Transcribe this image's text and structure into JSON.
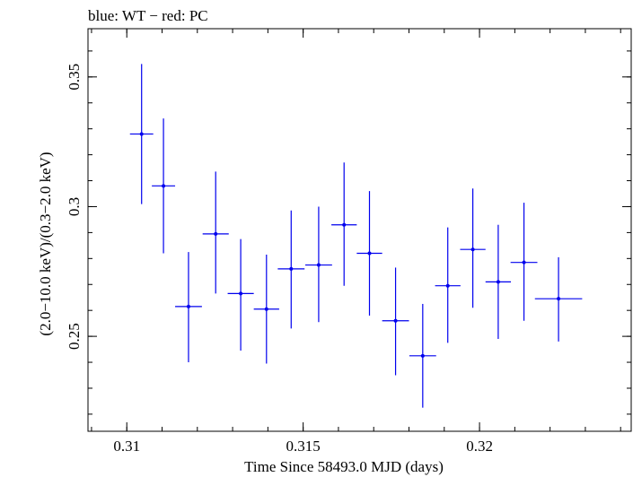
{
  "chart_data": {
    "type": "scatter",
    "title": "blue: WT − red: PC",
    "xlabel": "Time Since 58493.0 MJD (days)",
    "ylabel": "(2.0−10.0 keV)/(0.3−2.0 keV)",
    "xlim": [
      0.3089,
      0.3243
    ],
    "ylim": [
      0.2134,
      0.3686
    ],
    "xticks": [
      0.31,
      0.315,
      0.32
    ],
    "xtick_labels": [
      "0.31",
      "0.315",
      "0.32"
    ],
    "yticks": [
      0.25,
      0.3,
      0.35
    ],
    "ytick_labels": [
      "0.25",
      "0.3",
      "0.35"
    ],
    "x_minor_step": 0.001,
    "y_minor_step": 0.01,
    "grid": false,
    "color": "#0000ee",
    "series": [
      {
        "points": [
          {
            "x": 0.31042,
            "xerr": 0.00033,
            "y": 0.328,
            "ylo": 0.301,
            "yhi": 0.355
          },
          {
            "x": 0.31104,
            "xerr": 0.00033,
            "y": 0.308,
            "ylo": 0.282,
            "yhi": 0.334
          },
          {
            "x": 0.31175,
            "xerr": 0.00038,
            "y": 0.2615,
            "ylo": 0.24,
            "yhi": 0.2825
          },
          {
            "x": 0.31252,
            "xerr": 0.00037,
            "y": 0.2895,
            "ylo": 0.2665,
            "yhi": 0.3135
          },
          {
            "x": 0.31323,
            "xerr": 0.00037,
            "y": 0.2665,
            "ylo": 0.2445,
            "yhi": 0.2875
          },
          {
            "x": 0.31396,
            "xerr": 0.00036,
            "y": 0.2605,
            "ylo": 0.2395,
            "yhi": 0.2815
          },
          {
            "x": 0.31466,
            "xerr": 0.00038,
            "y": 0.276,
            "ylo": 0.253,
            "yhi": 0.2985
          },
          {
            "x": 0.31544,
            "xerr": 0.00038,
            "y": 0.2775,
            "ylo": 0.2555,
            "yhi": 0.3
          },
          {
            "x": 0.31616,
            "xerr": 0.00036,
            "y": 0.293,
            "ylo": 0.2695,
            "yhi": 0.317
          },
          {
            "x": 0.31688,
            "xerr": 0.00036,
            "y": 0.282,
            "ylo": 0.258,
            "yhi": 0.306
          },
          {
            "x": 0.31762,
            "xerr": 0.00038,
            "y": 0.256,
            "ylo": 0.235,
            "yhi": 0.2765
          },
          {
            "x": 0.31839,
            "xerr": 0.00038,
            "y": 0.2425,
            "ylo": 0.2225,
            "yhi": 0.2625
          },
          {
            "x": 0.3191,
            "xerr": 0.00036,
            "y": 0.2695,
            "ylo": 0.2475,
            "yhi": 0.292
          },
          {
            "x": 0.31981,
            "xerr": 0.00036,
            "y": 0.2835,
            "ylo": 0.261,
            "yhi": 0.307
          },
          {
            "x": 0.32053,
            "xerr": 0.00036,
            "y": 0.271,
            "ylo": 0.249,
            "yhi": 0.293
          },
          {
            "x": 0.32126,
            "xerr": 0.00038,
            "y": 0.2785,
            "ylo": 0.256,
            "yhi": 0.3015
          },
          {
            "x": 0.32224,
            "xerr": 0.00067,
            "y": 0.2645,
            "ylo": 0.248,
            "yhi": 0.2805
          }
        ]
      }
    ]
  }
}
